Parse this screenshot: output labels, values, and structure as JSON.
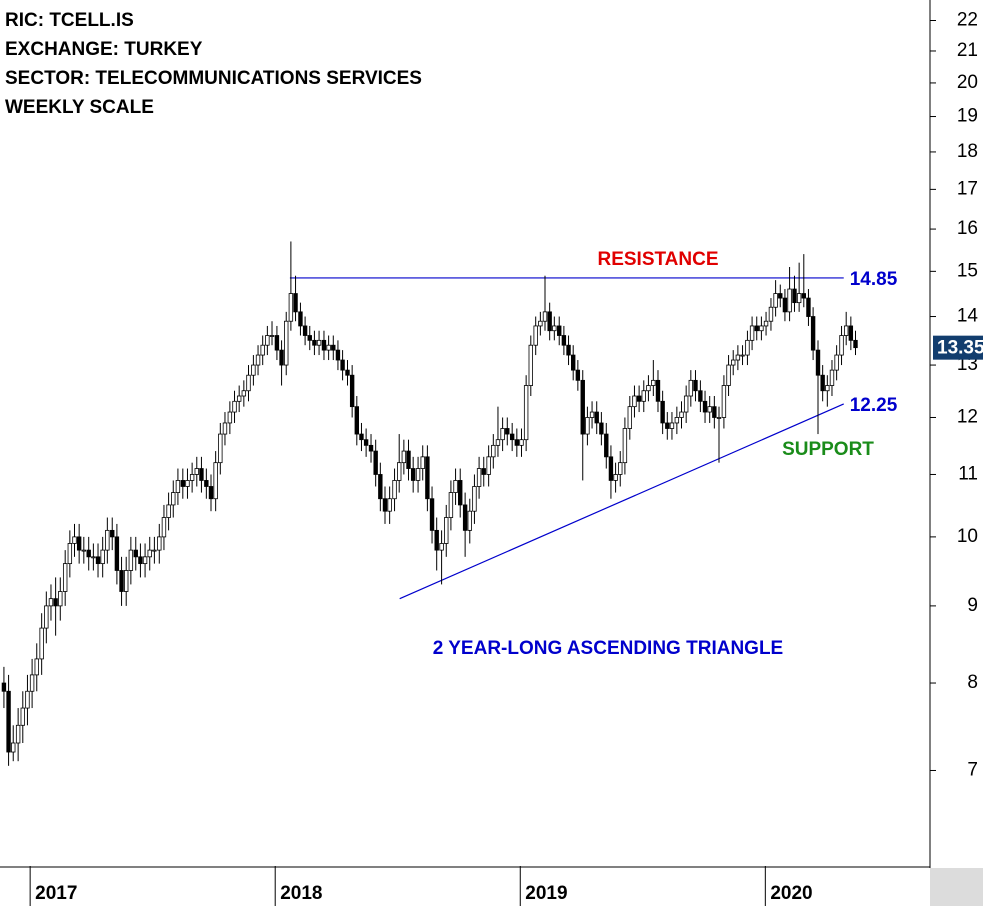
{
  "chart_data": {
    "type": "candlestick",
    "title_lines": [
      "RIC: TCELL.IS",
      "EXCHANGE: TURKEY",
      "SECTOR: TELECOMMUNICATIONS SERVICES",
      "WEEKLY SCALE"
    ],
    "log_scale": true,
    "ylim": [
      6.05,
      22.7
    ],
    "yticks": [
      7,
      8,
      9,
      10,
      11,
      12,
      13,
      14,
      15,
      16,
      17,
      18,
      19,
      20,
      21,
      22
    ],
    "xlim": [
      2016.877,
      2020.672
    ],
    "xticks": [
      2017,
      2018,
      2019,
      2020
    ],
    "up_color": "#ffffff",
    "down_color": "#000000",
    "x": [
      2016.893,
      2016.912,
      2016.931,
      2016.951,
      2016.97,
      2016.989,
      2017.008,
      2017.027,
      2017.047,
      2017.066,
      2017.085,
      2017.104,
      2017.123,
      2017.143,
      2017.162,
      2017.181,
      2017.2,
      2017.219,
      2017.239,
      2017.258,
      2017.277,
      2017.296,
      2017.315,
      2017.335,
      2017.354,
      2017.373,
      2017.392,
      2017.411,
      2017.431,
      2017.45,
      2017.469,
      2017.488,
      2017.507,
      2017.527,
      2017.546,
      2017.565,
      2017.584,
      2017.603,
      2017.623,
      2017.642,
      2017.661,
      2017.68,
      2017.699,
      2017.719,
      2017.738,
      2017.757,
      2017.776,
      2017.795,
      2017.815,
      2017.834,
      2017.853,
      2017.872,
      2017.891,
      2017.911,
      2017.93,
      2017.949,
      2017.968,
      2017.987,
      2018.007,
      2018.026,
      2018.045,
      2018.064,
      2018.083,
      2018.103,
      2018.122,
      2018.141,
      2018.16,
      2018.179,
      2018.199,
      2018.218,
      2018.237,
      2018.256,
      2018.275,
      2018.295,
      2018.314,
      2018.333,
      2018.352,
      2018.371,
      2018.391,
      2018.41,
      2018.429,
      2018.448,
      2018.467,
      2018.487,
      2018.506,
      2018.525,
      2018.544,
      2018.563,
      2018.583,
      2018.602,
      2018.621,
      2018.64,
      2018.659,
      2018.679,
      2018.698,
      2018.717,
      2018.736,
      2018.755,
      2018.775,
      2018.794,
      2018.813,
      2018.832,
      2018.851,
      2018.871,
      2018.89,
      2018.909,
      2018.928,
      2018.947,
      2018.967,
      2018.986,
      2019.005,
      2019.024,
      2019.043,
      2019.063,
      2019.082,
      2019.101,
      2019.12,
      2019.139,
      2019.159,
      2019.178,
      2019.197,
      2019.216,
      2019.235,
      2019.255,
      2019.274,
      2019.293,
      2019.312,
      2019.331,
      2019.351,
      2019.37,
      2019.389,
      2019.408,
      2019.427,
      2019.447,
      2019.466,
      2019.485,
      2019.504,
      2019.523,
      2019.543,
      2019.562,
      2019.581,
      2019.6,
      2019.619,
      2019.639,
      2019.658,
      2019.677,
      2019.696,
      2019.715,
      2019.735,
      2019.754,
      2019.773,
      2019.792,
      2019.811,
      2019.831,
      2019.85,
      2019.869,
      2019.888,
      2019.907,
      2019.927,
      2019.946,
      2019.965,
      2019.984,
      2020.003,
      2020.023,
      2020.042,
      2020.061,
      2020.08,
      2020.099,
      2020.119,
      2020.138,
      2020.157,
      2020.176,
      2020.195,
      2020.215,
      2020.234,
      2020.253,
      2020.272,
      2020.291,
      2020.311,
      2020.33,
      2020.349,
      2020.368
    ],
    "open": [
      8.0,
      7.9,
      7.2,
      7.3,
      7.5,
      7.7,
      7.9,
      8.1,
      8.3,
      8.7,
      9.0,
      9.1,
      9.0,
      9.2,
      9.6,
      9.9,
      10.0,
      9.8,
      9.8,
      9.7,
      9.7,
      9.6,
      9.8,
      10.1,
      10.0,
      9.5,
      9.2,
      9.5,
      9.8,
      9.7,
      9.6,
      9.7,
      9.8,
      9.8,
      10.0,
      10.3,
      10.5,
      10.7,
      10.9,
      10.8,
      10.9,
      11.0,
      11.1,
      10.9,
      10.8,
      10.6,
      11.2,
      11.7,
      11.9,
      12.1,
      12.3,
      12.4,
      12.5,
      12.8,
      13.0,
      13.2,
      13.4,
      13.6,
      13.6,
      13.3,
      13.0,
      13.9,
      14.5,
      14.1,
      13.8,
      13.6,
      13.5,
      13.4,
      13.5,
      13.3,
      13.4,
      13.3,
      13.1,
      12.9,
      12.8,
      12.2,
      11.7,
      11.6,
      11.5,
      11.4,
      11.0,
      10.6,
      10.4,
      10.6,
      10.9,
      11.2,
      11.4,
      11.1,
      10.9,
      11.1,
      11.3,
      10.6,
      10.1,
      9.8,
      9.9,
      10.3,
      10.7,
      10.9,
      10.5,
      10.1,
      10.4,
      10.8,
      11.1,
      11.0,
      11.3,
      11.5,
      11.6,
      11.8,
      11.7,
      11.6,
      11.5,
      11.6,
      12.6,
      13.4,
      13.8,
      13.9,
      14.1,
      13.7,
      13.8,
      13.6,
      13.4,
      13.2,
      12.9,
      12.7,
      11.7,
      12.0,
      12.1,
      11.9,
      11.7,
      11.3,
      10.9,
      11.0,
      11.2,
      11.8,
      12.2,
      12.4,
      12.3,
      12.5,
      12.6,
      12.7,
      12.3,
      11.9,
      11.8,
      11.9,
      12.0,
      12.1,
      12.4,
      12.7,
      12.5,
      12.3,
      12.1,
      12.2,
      12.0,
      12.0,
      12.6,
      13.0,
      13.1,
      13.2,
      13.2,
      13.5,
      13.8,
      13.7,
      13.8,
      13.9,
      14.2,
      14.5,
      14.4,
      14.1,
      14.6,
      14.3,
      14.5,
      14.4,
      14.0,
      13.3,
      12.8,
      12.5,
      12.6,
      12.9,
      13.2,
      13.6,
      13.8,
      13.5
    ],
    "high": [
      8.2,
      8.1,
      7.5,
      7.7,
      7.9,
      8.1,
      8.3,
      8.5,
      8.9,
      9.2,
      9.3,
      9.4,
      9.4,
      9.8,
      10.1,
      10.2,
      10.2,
      10.0,
      10.0,
      9.9,
      9.9,
      10.0,
      10.3,
      10.3,
      10.2,
      9.7,
      9.7,
      10.0,
      10.0,
      9.9,
      9.9,
      10.0,
      10.0,
      10.2,
      10.5,
      10.7,
      10.9,
      11.1,
      11.1,
      11.1,
      11.2,
      11.3,
      11.3,
      11.1,
      11.0,
      11.4,
      11.9,
      12.1,
      12.3,
      12.5,
      12.6,
      12.7,
      13.0,
      13.2,
      13.4,
      13.6,
      13.8,
      13.9,
      13.8,
      13.5,
      14.1,
      15.7,
      14.9,
      14.3,
      14.0,
      13.8,
      13.7,
      13.7,
      13.7,
      13.6,
      13.6,
      13.5,
      13.3,
      13.1,
      13.0,
      12.4,
      11.9,
      11.8,
      11.7,
      11.6,
      11.2,
      10.8,
      10.8,
      11.1,
      11.7,
      11.6,
      11.6,
      11.3,
      11.3,
      11.5,
      11.5,
      10.8,
      10.3,
      10.1,
      10.5,
      10.9,
      11.1,
      11.1,
      10.7,
      10.6,
      11.0,
      11.3,
      11.3,
      11.5,
      11.7,
      12.2,
      12.0,
      12.0,
      11.9,
      11.8,
      11.8,
      12.8,
      13.6,
      14.0,
      14.1,
      14.9,
      14.3,
      14.0,
      14.0,
      13.8,
      13.6,
      13.4,
      13.1,
      12.9,
      12.2,
      12.3,
      12.3,
      12.1,
      11.9,
      11.5,
      11.2,
      11.4,
      12.0,
      12.4,
      12.6,
      12.6,
      12.7,
      12.8,
      13.1,
      12.9,
      12.5,
      12.1,
      12.1,
      12.2,
      12.3,
      12.6,
      12.9,
      12.9,
      12.7,
      12.5,
      12.4,
      12.4,
      12.2,
      12.8,
      13.2,
      13.3,
      13.4,
      13.4,
      13.7,
      14.0,
      14.0,
      14.0,
      14.1,
      14.4,
      14.8,
      14.7,
      14.6,
      15.1,
      14.9,
      15.2,
      15.4,
      14.6,
      14.2,
      13.5,
      13.0,
      12.8,
      13.1,
      13.4,
      13.8,
      14.1,
      14.0,
      13.7
    ],
    "low": [
      7.7,
      7.05,
      7.1,
      7.1,
      7.3,
      7.5,
      7.7,
      7.9,
      8.1,
      8.5,
      8.8,
      8.6,
      8.8,
      9.0,
      9.4,
      9.7,
      9.6,
      9.6,
      9.5,
      9.5,
      9.4,
      9.4,
      9.6,
      9.8,
      9.3,
      9.0,
      9.0,
      9.3,
      9.5,
      9.4,
      9.4,
      9.5,
      9.6,
      9.6,
      9.8,
      10.1,
      10.3,
      10.5,
      10.6,
      10.6,
      10.7,
      10.8,
      10.7,
      10.6,
      10.4,
      10.4,
      11.0,
      11.5,
      11.7,
      11.9,
      12.1,
      12.2,
      12.3,
      12.6,
      12.8,
      13.0,
      13.2,
      13.4,
      13.1,
      12.6,
      12.8,
      13.7,
      13.9,
      13.6,
      13.4,
      13.3,
      13.2,
      13.2,
      13.1,
      13.1,
      13.1,
      12.9,
      12.7,
      12.6,
      12.0,
      11.5,
      11.4,
      11.3,
      11.2,
      10.8,
      10.4,
      10.2,
      10.2,
      10.4,
      10.7,
      11.0,
      10.9,
      10.7,
      10.7,
      10.9,
      10.4,
      9.9,
      9.5,
      9.3,
      9.7,
      10.1,
      10.5,
      10.3,
      9.7,
      9.9,
      10.2,
      10.6,
      10.8,
      10.8,
      11.1,
      11.3,
      11.4,
      11.5,
      11.4,
      11.3,
      11.3,
      11.4,
      12.4,
      13.2,
      13.6,
      13.7,
      13.5,
      13.5,
      13.4,
      13.2,
      13.0,
      12.7,
      12.5,
      10.9,
      11.5,
      11.8,
      11.7,
      11.5,
      11.1,
      10.6,
      10.7,
      10.8,
      11.0,
      11.6,
      12.0,
      12.1,
      12.1,
      12.3,
      12.4,
      12.1,
      11.7,
      11.6,
      11.6,
      11.7,
      11.8,
      11.9,
      12.2,
      12.3,
      12.1,
      11.9,
      11.9,
      11.8,
      11.2,
      11.8,
      12.4,
      12.8,
      12.9,
      13.0,
      13.0,
      13.3,
      13.5,
      13.5,
      13.6,
      13.7,
      14.0,
      14.2,
      13.9,
      13.9,
      14.1,
      14.1,
      14.2,
      13.8,
      13.1,
      11.7,
      12.3,
      12.2,
      12.4,
      12.7,
      13.0,
      13.4,
      13.3,
      13.2
    ],
    "close": [
      7.9,
      7.2,
      7.3,
      7.5,
      7.7,
      7.9,
      8.1,
      8.3,
      8.7,
      9.0,
      9.1,
      9.0,
      9.2,
      9.6,
      9.9,
      10.0,
      9.8,
      9.8,
      9.7,
      9.7,
      9.6,
      9.8,
      10.1,
      10.0,
      9.5,
      9.2,
      9.5,
      9.8,
      9.7,
      9.6,
      9.7,
      9.8,
      9.8,
      10.0,
      10.3,
      10.5,
      10.7,
      10.9,
      10.8,
      10.9,
      11.0,
      11.1,
      10.9,
      10.8,
      10.6,
      11.2,
      11.7,
      11.9,
      12.1,
      12.3,
      12.4,
      12.5,
      12.8,
      13.0,
      13.2,
      13.4,
      13.6,
      13.6,
      13.3,
      13.0,
      13.9,
      14.5,
      14.1,
      13.8,
      13.6,
      13.5,
      13.4,
      13.5,
      13.3,
      13.4,
      13.3,
      13.1,
      12.9,
      12.8,
      12.2,
      11.7,
      11.6,
      11.5,
      11.4,
      11.0,
      10.6,
      10.4,
      10.6,
      10.9,
      11.2,
      11.4,
      11.1,
      10.9,
      11.1,
      11.3,
      10.6,
      10.1,
      9.8,
      9.9,
      10.3,
      10.7,
      10.9,
      10.5,
      10.1,
      10.4,
      10.8,
      11.1,
      11.0,
      11.3,
      11.5,
      11.6,
      11.8,
      11.7,
      11.6,
      11.5,
      11.6,
      12.6,
      13.4,
      13.8,
      13.9,
      14.1,
      13.7,
      13.8,
      13.6,
      13.4,
      13.2,
      12.9,
      12.7,
      11.7,
      12.0,
      12.1,
      11.9,
      11.7,
      11.3,
      10.9,
      11.0,
      11.2,
      11.8,
      12.2,
      12.4,
      12.3,
      12.5,
      12.6,
      12.7,
      12.3,
      11.9,
      11.8,
      11.9,
      12.0,
      12.1,
      12.4,
      12.7,
      12.5,
      12.3,
      12.1,
      12.2,
      12.0,
      12.0,
      12.6,
      13.0,
      13.1,
      13.2,
      13.2,
      13.5,
      13.8,
      13.7,
      13.8,
      13.9,
      14.2,
      14.5,
      14.4,
      14.1,
      14.6,
      14.3,
      14.5,
      14.4,
      14.0,
      13.3,
      12.8,
      12.5,
      12.6,
      12.9,
      13.2,
      13.6,
      13.8,
      13.5,
      13.35
    ],
    "trendlines": [
      {
        "name": "RESISTANCE",
        "color": "#0000cc",
        "label_color": "#e00000",
        "x": [
          2018.06,
          2020.32
        ],
        "values": [
          14.85,
          14.85
        ]
      },
      {
        "name": "SUPPORT",
        "color": "#0000cc",
        "label_color": "#1a8c1a",
        "x": [
          2018.508,
          2020.32
        ],
        "values": [
          9.1,
          12.25
        ]
      }
    ],
    "annotation": "2 YEAR-LONG ASCENDING TRIANGLE",
    "annotation_color": "#0000cc",
    "last_price_color": "#123d6e"
  }
}
